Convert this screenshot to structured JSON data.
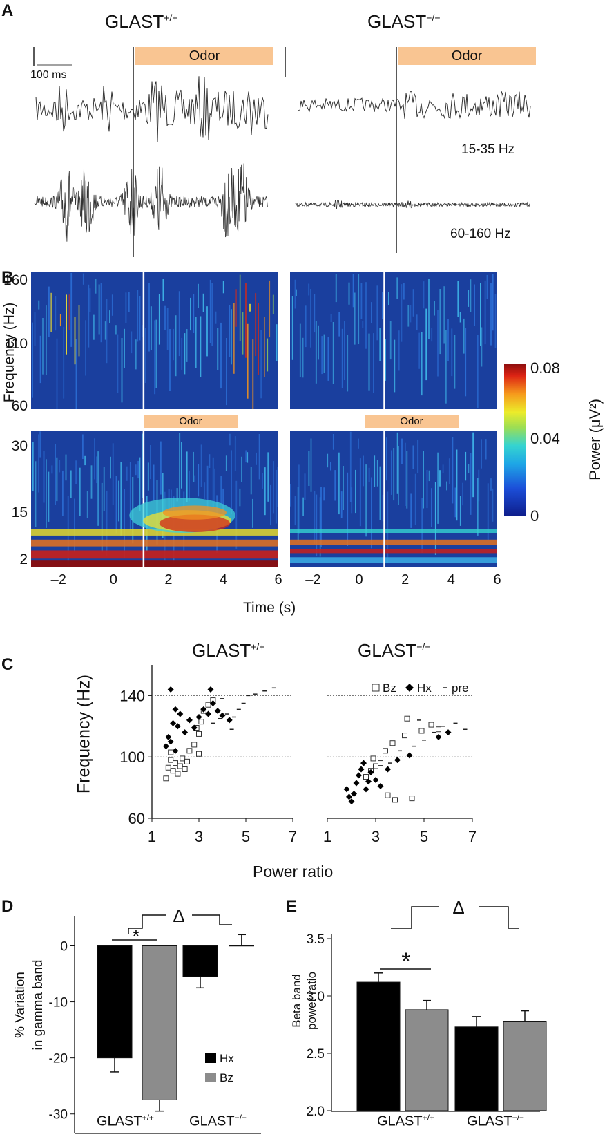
{
  "panel_labels": {
    "a": "A",
    "b": "B",
    "c": "C",
    "d": "D",
    "e": "E"
  },
  "genotypes": {
    "wt": "GLAST",
    "wt_sup": "+/+",
    "ko": "GLAST",
    "ko_sup": "−/−"
  },
  "panel_a": {
    "odor_label": "Odor",
    "scalebar_label": "100 ms",
    "band_beta": "15-35 Hz",
    "band_gamma": "60-160 Hz"
  },
  "panel_b": {
    "ylabel": "Frequency (Hz)",
    "xlabel": "Time (s)",
    "odor_label": "Odor",
    "top_ticks": [
      "160",
      "110",
      "60"
    ],
    "bottom_ticks": [
      "30",
      "15",
      "2"
    ],
    "xticks": [
      "–2",
      "0",
      "2",
      "4",
      "6"
    ],
    "colorbar": {
      "label": "Power (μV²)",
      "max": "0.08",
      "mid": "0.04",
      "min": "0"
    }
  },
  "panel_c": {
    "ylabel": "Frequency (Hz)",
    "xlabel": "Power ratio",
    "yticks": [
      "140",
      "100",
      "60"
    ],
    "xticks": [
      "1",
      "3",
      "5",
      "7"
    ],
    "legend": {
      "bz": "Bz",
      "hx": "Hx",
      "pre": "pre"
    }
  },
  "panel_d": {
    "ylabel_line1": "% Variation",
    "ylabel_line2": "in gamma band",
    "yticks": [
      "0",
      "-10",
      "-20",
      "-30"
    ],
    "sig": "*",
    "delta": "Δ",
    "legend": {
      "hx": "Hx",
      "bz": "Bz"
    }
  },
  "panel_e": {
    "ylabel_line1": "Beta band",
    "ylabel_line2": "power ratio",
    "yticks": [
      "3.5",
      "3.0",
      "2.5",
      "2.0"
    ],
    "sig": "*",
    "delta": "Δ"
  },
  "colors": {
    "hx": "#000000",
    "bz": "#8c8c8c",
    "odor": "#f9c592"
  },
  "chart_data": [
    {
      "type": "heatmap",
      "title": "B",
      "xlabel": "Time (s)",
      "ylabel": "Frequency (Hz)",
      "xlim": [
        -3,
        6
      ],
      "ylim_gamma": [
        60,
        160
      ],
      "ylim_beta": [
        2,
        35
      ],
      "colorbar_range": [
        0,
        0.08
      ]
    },
    {
      "type": "scatter",
      "title": "C",
      "xlabel": "Power ratio",
      "ylabel": "Frequency (Hz)",
      "xlim": [
        1,
        7
      ],
      "ylim": [
        60,
        160
      ],
      "reference_lines": [
        100,
        140
      ],
      "series": [
        {
          "name": "Bz",
          "genotype": "GLAST+/+",
          "points": [
            [
              1.6,
              86
            ],
            [
              1.7,
              93
            ],
            [
              1.8,
              98
            ],
            [
              1.9,
              91
            ],
            [
              2.0,
              96
            ],
            [
              2.1,
              89
            ],
            [
              2.2,
              94
            ],
            [
              2.3,
              99
            ],
            [
              2.4,
              92
            ],
            [
              2.5,
              97
            ],
            [
              2.6,
              104
            ],
            [
              2.8,
              108
            ],
            [
              3.0,
              115
            ],
            [
              3.1,
              123
            ],
            [
              3.2,
              130
            ],
            [
              3.4,
              134
            ],
            [
              3.6,
              137
            ],
            [
              3.0,
              102
            ],
            [
              2.9,
              119
            ],
            [
              1.8,
              103
            ]
          ]
        },
        {
          "name": "Hx",
          "genotype": "GLAST+/+",
          "points": [
            [
              1.6,
              107
            ],
            [
              1.7,
              113
            ],
            [
              1.8,
              110
            ],
            [
              1.9,
              122
            ],
            [
              2.0,
              131
            ],
            [
              2.1,
              120
            ],
            [
              2.2,
              128
            ],
            [
              2.4,
              116
            ],
            [
              2.6,
              124
            ],
            [
              2.8,
              119
            ],
            [
              3.0,
              126
            ],
            [
              3.2,
              131
            ],
            [
              3.4,
              128
            ],
            [
              3.6,
              135
            ],
            [
              3.8,
              130
            ],
            [
              4.0,
              127
            ],
            [
              4.3,
              124
            ],
            [
              2.0,
              104
            ],
            [
              1.8,
              144
            ],
            [
              3.5,
              144
            ]
          ]
        },
        {
          "name": "pre",
          "genotype": "GLAST+/+",
          "points": [
            [
              3.6,
              122
            ],
            [
              3.9,
              125
            ],
            [
              4.2,
              128
            ],
            [
              4.5,
              126
            ],
            [
              4.7,
              131
            ],
            [
              4.9,
              135
            ],
            [
              5.1,
              140
            ],
            [
              5.4,
              141
            ],
            [
              5.8,
              143
            ],
            [
              6.2,
              145
            ],
            [
              4.4,
              118
            ],
            [
              4.0,
              138
            ]
          ]
        },
        {
          "name": "Bz",
          "genotype": "GLAST-/-",
          "points": [
            [
              2.6,
              87
            ],
            [
              2.8,
              91
            ],
            [
              3.0,
              94
            ],
            [
              2.9,
              99
            ],
            [
              3.2,
              96
            ],
            [
              3.5,
              75
            ],
            [
              3.8,
              72
            ],
            [
              4.5,
              73
            ],
            [
              3.4,
              104
            ],
            [
              3.7,
              109
            ],
            [
              4.2,
              114
            ],
            [
              4.9,
              117
            ],
            [
              5.3,
              121
            ],
            [
              5.6,
              118
            ],
            [
              4.3,
              125
            ]
          ]
        },
        {
          "name": "Hx",
          "genotype": "GLAST-/-",
          "points": [
            [
              1.8,
              79
            ],
            [
              1.9,
              74
            ],
            [
              2.0,
              71
            ],
            [
              2.1,
              76
            ],
            [
              2.2,
              83
            ],
            [
              2.3,
              88
            ],
            [
              2.4,
              92
            ],
            [
              2.5,
              96
            ],
            [
              2.6,
              79
            ],
            [
              2.7,
              84
            ],
            [
              2.8,
              90
            ],
            [
              3.0,
              85
            ],
            [
              3.2,
              81
            ],
            [
              3.5,
              92
            ],
            [
              3.9,
              98
            ],
            [
              4.4,
              101
            ],
            [
              5.6,
              113
            ],
            [
              6.0,
              116
            ]
          ]
        },
        {
          "name": "pre",
          "genotype": "GLAST-/-",
          "points": [
            [
              3.6,
              96
            ],
            [
              4.0,
              104
            ],
            [
              4.6,
              107
            ],
            [
              5.0,
              111
            ],
            [
              5.4,
              116
            ],
            [
              5.8,
              120
            ],
            [
              6.3,
              122
            ],
            [
              6.7,
              118
            ],
            [
              4.8,
              124
            ]
          ]
        }
      ]
    },
    {
      "type": "bar",
      "title": "D",
      "ylabel": "% Variation in gamma band",
      "categories": [
        "GLAST+/+",
        "GLAST−/−"
      ],
      "ylim": [
        -30,
        5
      ],
      "series": [
        {
          "name": "Hx",
          "values": [
            -20,
            -5.5
          ],
          "errors": [
            2.5,
            2
          ]
        },
        {
          "name": "Bz",
          "values": [
            -27.5,
            0
          ],
          "errors": [
            2,
            2
          ]
        }
      ]
    },
    {
      "type": "bar",
      "title": "E",
      "ylabel": "Beta band power ratio",
      "categories": [
        "GLAST+/+",
        "GLAST−/−"
      ],
      "ylim": [
        2.0,
        3.5
      ],
      "series": [
        {
          "name": "Hx",
          "values": [
            3.12,
            2.73
          ],
          "errors": [
            0.08,
            0.09
          ]
        },
        {
          "name": "Bz",
          "values": [
            2.88,
            2.78
          ],
          "errors": [
            0.08,
            0.09
          ]
        }
      ]
    }
  ]
}
